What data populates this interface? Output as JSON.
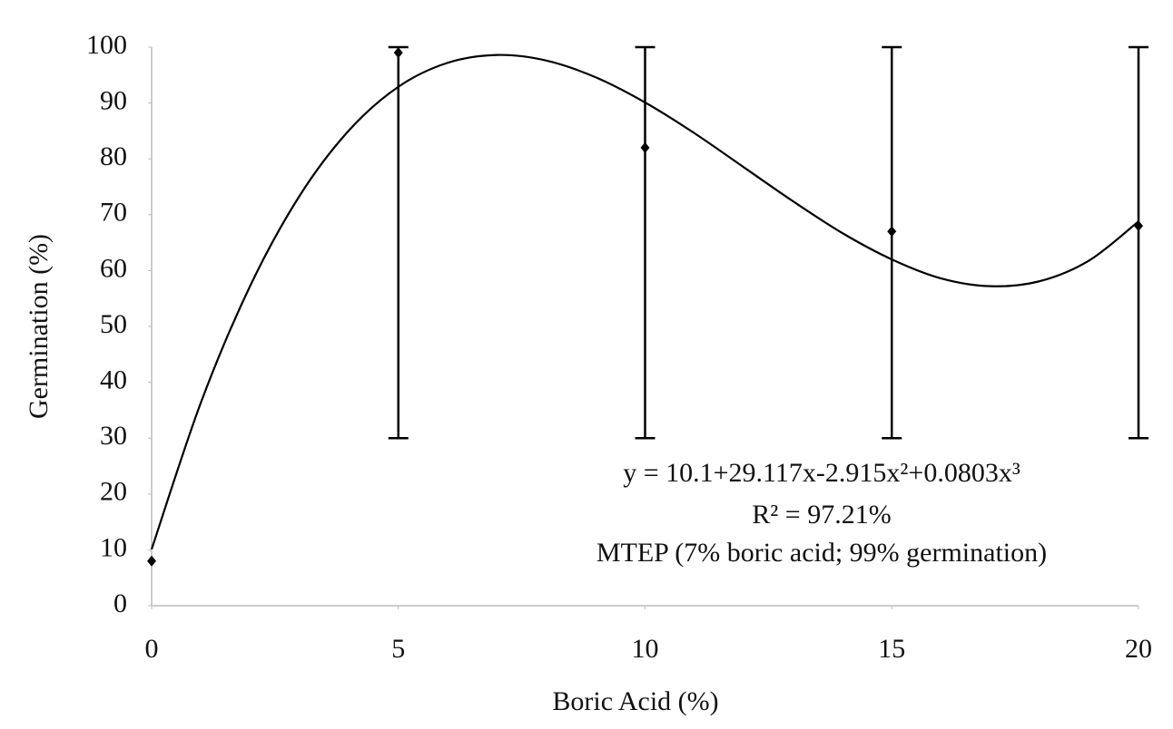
{
  "chart_data": {
    "type": "scatter",
    "x_label": "Boric Acid (%)",
    "y_label": "Germination (%)",
    "x": [
      0,
      5,
      10,
      15,
      20
    ],
    "values": [
      8,
      99,
      82,
      67,
      68
    ],
    "errors_minus": [
      null,
      69,
      52,
      37,
      38
    ],
    "errors_plus": [
      null,
      1,
      18,
      33,
      32
    ],
    "color": "#000000",
    "fit": {
      "type": "line",
      "color": "#000000",
      "x": [
        0,
        1,
        2,
        3,
        4,
        5,
        6,
        7,
        8,
        9,
        10,
        11,
        12,
        13,
        14,
        15,
        16,
        17,
        18,
        19,
        20
      ],
      "values": [
        10.1,
        36.4,
        57.3,
        73.4,
        85.1,
        92.9,
        97.2,
        98.6,
        97.6,
        94.6,
        90.1,
        84.6,
        78.5,
        72.4,
        66.7,
        62.0,
        58.6,
        57.2,
        58.1,
        61.8,
        68.8
      ]
    },
    "annotations": [
      "y = 10.1+29.117x-2.915x²+0.0803x³",
      "R² = 97.21%",
      "MTEP (7% boric acid; 99% germination)"
    ],
    "xlim": [
      0,
      20
    ],
    "xticks": [
      0,
      5,
      10,
      15,
      20
    ],
    "ylim": [
      0,
      100
    ],
    "yticks": [
      0,
      10,
      20,
      30,
      40,
      50,
      60,
      70,
      80,
      90,
      100
    ]
  }
}
